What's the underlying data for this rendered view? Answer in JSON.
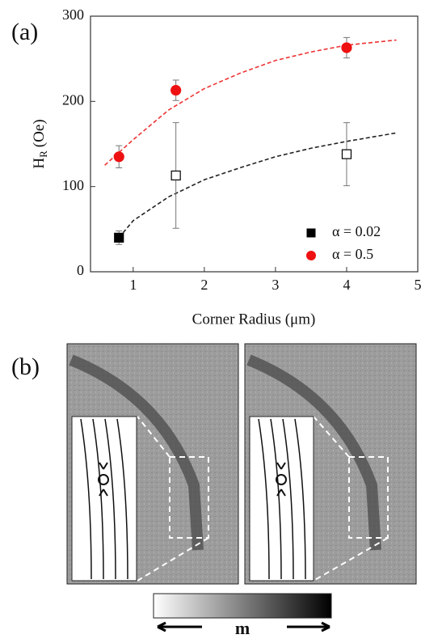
{
  "panel_labels": [
    "(a)",
    "(b)"
  ],
  "chart_data": {
    "type": "scatter",
    "xlabel": "Corner Radius (μm)",
    "ylabel": "H",
    "ylabel_sub": "R",
    "ylabel_unit": "(Oe)",
    "xlim": [
      0.4,
      5
    ],
    "xticks": [
      1,
      2,
      3,
      4,
      5
    ],
    "ylim": [
      0,
      300
    ],
    "yticks": [
      0,
      100,
      200,
      300
    ],
    "legend": "lower right",
    "series": [
      {
        "name": "α = 0.02",
        "color": "#000000",
        "marker": "square",
        "x": [
          0.8,
          1.6,
          4
        ],
        "values": [
          40,
          113,
          138
        ],
        "errors": [
          8,
          62,
          37
        ],
        "filled": [
          true,
          false,
          false
        ]
      },
      {
        "name": "α = 0.5",
        "color": "#ee1111",
        "marker": "circle",
        "x": [
          0.8,
          1.6,
          4
        ],
        "values": [
          135,
          213,
          263
        ],
        "errors": [
          13,
          12,
          12
        ],
        "filled": [
          true,
          true,
          true
        ]
      }
    ],
    "fits": [
      {
        "color": "#222222",
        "x": [
          0.8,
          1,
          1.5,
          2,
          2.5,
          3,
          3.5,
          4,
          4.7
        ],
        "values": [
          40,
          60,
          88,
          108,
          122,
          135,
          145,
          153,
          163
        ]
      },
      {
        "color": "#ee3333",
        "x": [
          0.6,
          1,
          1.5,
          2,
          2.5,
          3,
          3.5,
          4,
          4.7
        ],
        "values": [
          125,
          155,
          190,
          215,
          233,
          248,
          258,
          266,
          272
        ]
      }
    ]
  },
  "colorbar_label": "m"
}
